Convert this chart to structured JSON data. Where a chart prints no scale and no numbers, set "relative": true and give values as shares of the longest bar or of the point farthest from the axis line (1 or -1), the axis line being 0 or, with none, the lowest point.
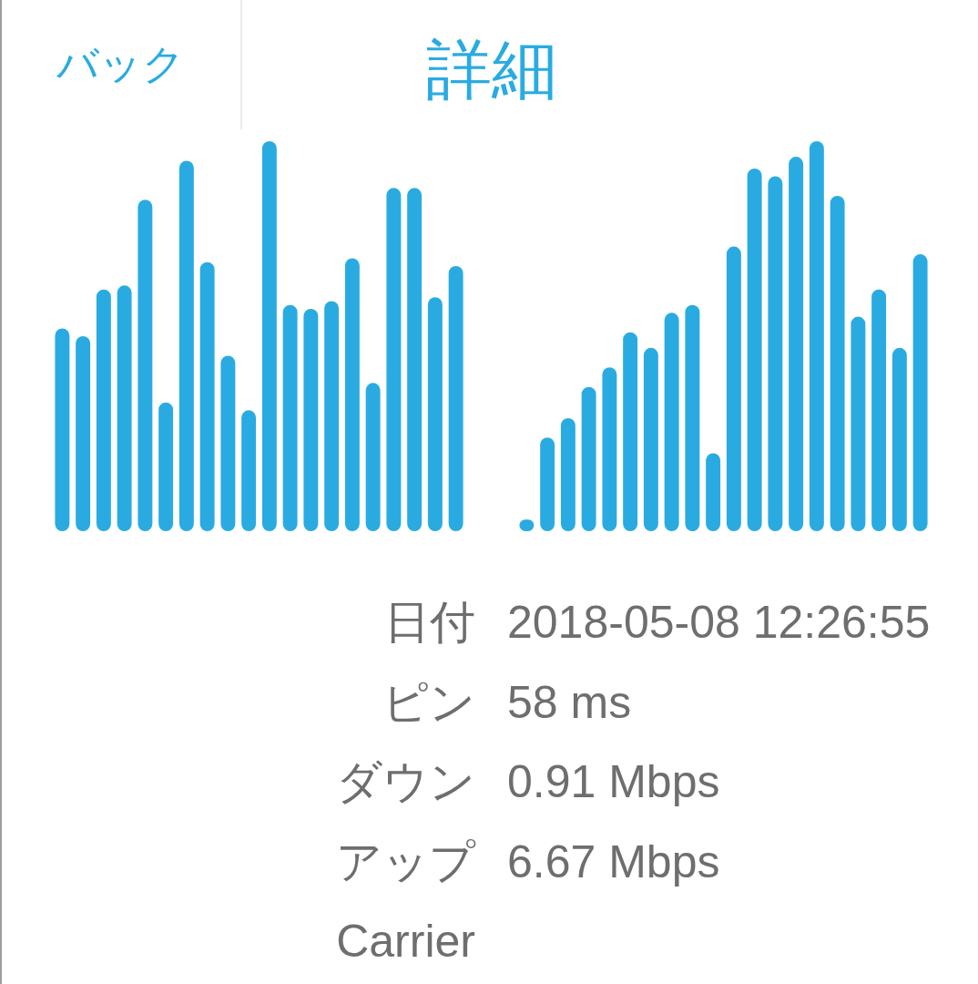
{
  "chart_data": [
    {
      "type": "other",
      "title": "詳細",
      "annotations": [
        "バック"
      ]
    },
    {
      "type": "bar",
      "relative": true,
      "color": "#29abe2",
      "categories": [
        null,
        null,
        null,
        null,
        null,
        null,
        null,
        null,
        null,
        null,
        null,
        null,
        null,
        null,
        null,
        null,
        null,
        null,
        null,
        null
      ],
      "values": [
        0.52,
        0.5,
        0.62,
        0.63,
        0.85,
        0.33,
        0.95,
        0.69,
        0.45,
        0.31,
        1.0,
        0.58,
        0.57,
        0.59,
        0.7,
        0.38,
        0.88,
        0.88,
        0.6,
        0.68
      ]
    },
    {
      "type": "bar",
      "relative": true,
      "color": "#29abe2",
      "categories": [
        null,
        null,
        null,
        null,
        null,
        null,
        null,
        null,
        null,
        null,
        null,
        null,
        null,
        null,
        null,
        null,
        null,
        null,
        null,
        null
      ],
      "values": [
        0.03,
        0.24,
        0.29,
        0.37,
        0.42,
        0.51,
        0.47,
        0.56,
        0.58,
        0.2,
        0.73,
        0.93,
        0.91,
        0.96,
        1.0,
        0.86,
        0.55,
        0.62,
        0.47,
        0.71
      ]
    },
    {
      "type": "other",
      "annotations": [
        "日付",
        "2018-05-08 12:26:55",
        "ピン",
        "58 ms",
        "ダウン",
        "0.91 Mbps",
        "アップ",
        "6.67 Mbps",
        "Carrier"
      ]
    }
  ]
}
